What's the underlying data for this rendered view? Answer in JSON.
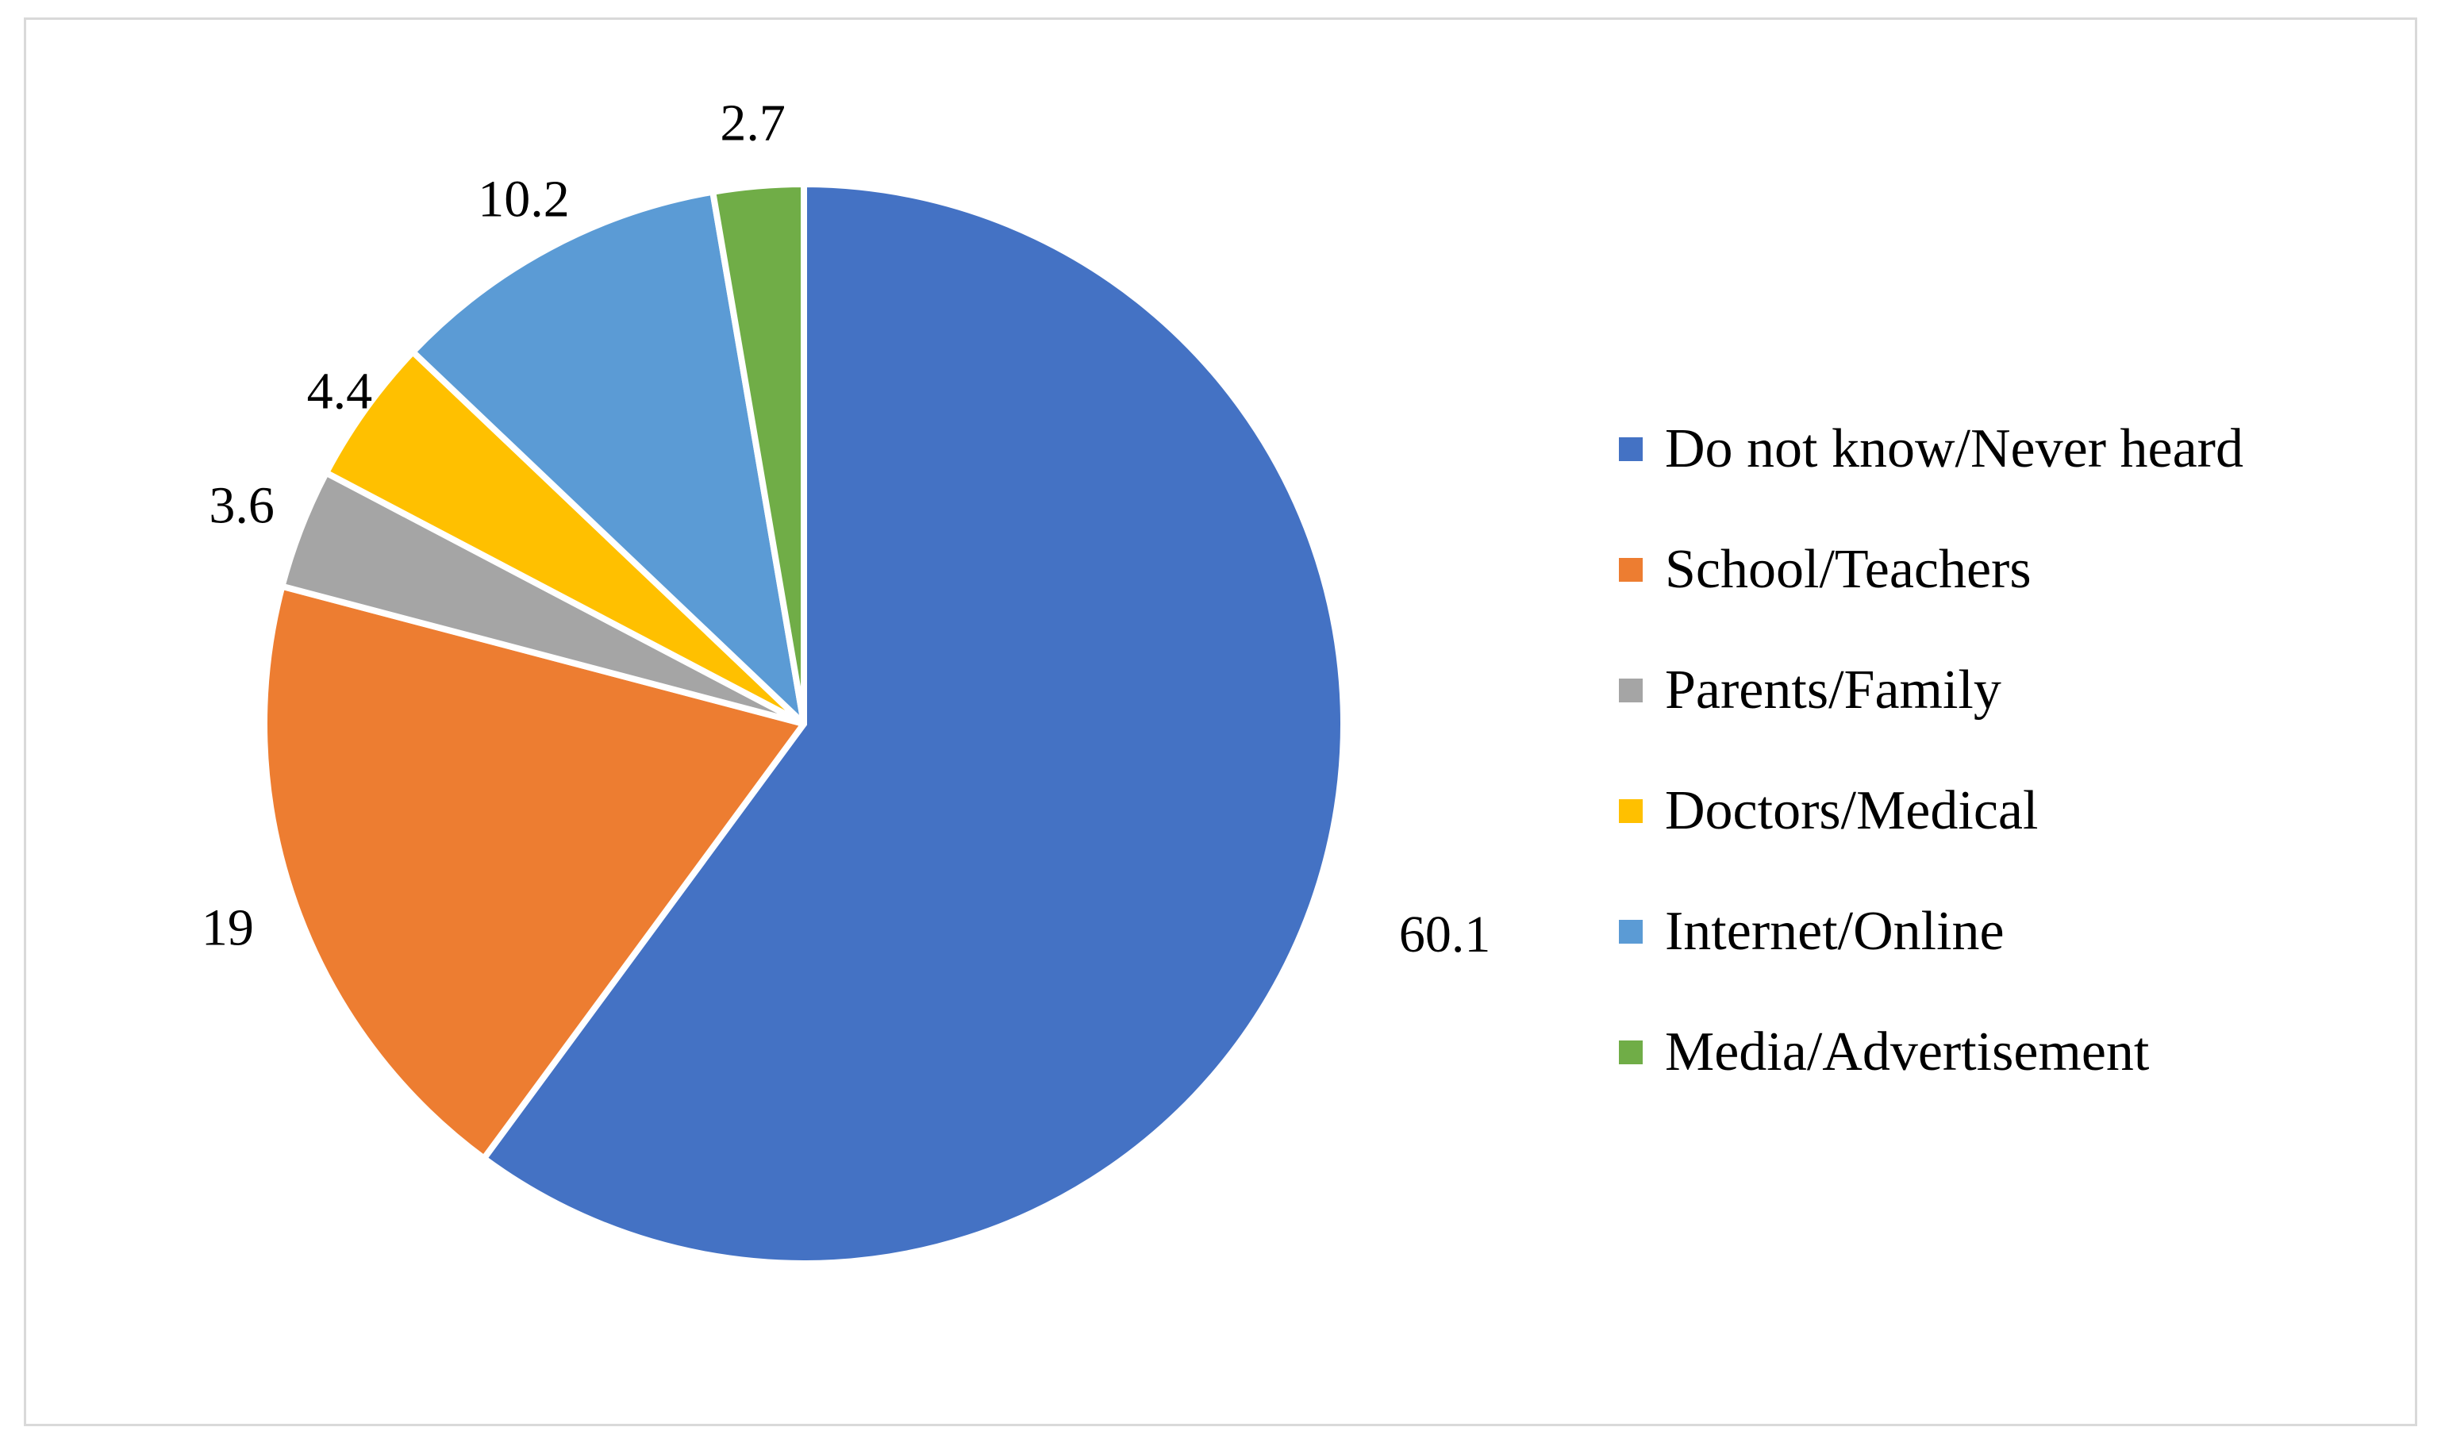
{
  "chart_data": {
    "type": "pie",
    "categories": [
      "Do not know/Never heard",
      "School/Teachers",
      "Parents/Family",
      "Doctors/Medical",
      "Internet/Online",
      "Media/Advertisement"
    ],
    "values": [
      60.1,
      19,
      3.6,
      4.4,
      10.2,
      2.7
    ],
    "data_labels": [
      "60.1",
      "19",
      "3.6",
      "4.4",
      "10.2",
      "2.7"
    ],
    "colors": [
      "#4472c4",
      "#ed7d31",
      "#a5a5a5",
      "#ffc000",
      "#5b9bd5",
      "#70ad47"
    ],
    "start_angle": "12 o'clock",
    "direction": "clockwise",
    "slice_border_color": "#ffffff",
    "legend_placement": "right",
    "title": ""
  }
}
